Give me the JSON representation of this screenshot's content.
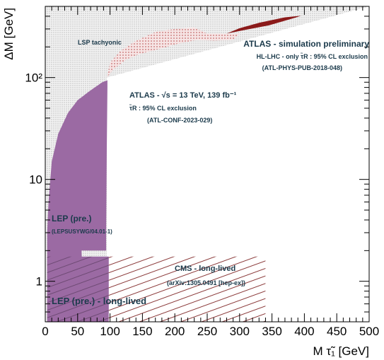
{
  "chart_data": {
    "type": "area",
    "xlabel": "M τ̃₁ [GeV]",
    "ylabel": "ΔM [GeV]",
    "xlim": [
      0,
      500
    ],
    "ylim": [
      0.4,
      500
    ],
    "yscale": "log",
    "grid": false,
    "legend": "none",
    "x_ticks": [
      "0",
      "50",
      "100",
      "150",
      "200",
      "250",
      "300",
      "350",
      "400",
      "450",
      "500"
    ],
    "y_ticks": [
      {
        "value": 1,
        "label": "1"
      },
      {
        "value": 10,
        "label": "10"
      },
      {
        "value": 100,
        "label": "10²"
      }
    ],
    "regions": [
      {
        "id": "lsp-tachyonic",
        "label": "LSP tachyonic",
        "color": "#cccccc",
        "points": [
          [
            0,
            500
          ],
          [
            0,
            0.4
          ],
          [
            95,
            0.4
          ],
          [
            95,
            100
          ],
          [
            500,
            500
          ]
        ]
      },
      {
        "id": "lep-pre",
        "color": "#9b6aa3",
        "points": [
          [
            3,
            0.4
          ],
          [
            3,
            3
          ],
          [
            5,
            6
          ],
          [
            10,
            15
          ],
          [
            20,
            28
          ],
          [
            35,
            45
          ],
          [
            50,
            60
          ],
          [
            70,
            75
          ],
          [
            88,
            90
          ],
          [
            96,
            94
          ],
          [
            96,
            80
          ],
          [
            95,
            20
          ],
          [
            94,
            3
          ],
          [
            94,
            2
          ],
          [
            56,
            2
          ],
          [
            60,
            0.4
          ]
        ]
      },
      {
        "id": "lep-pre-long-lived",
        "color": "#9b6aa3",
        "points": [
          [
            3,
            0.4
          ],
          [
            3,
            1.75
          ],
          [
            98,
            1.75
          ],
          [
            98,
            0.4
          ]
        ]
      },
      {
        "id": "cms-long-lived",
        "color": "#8b3a3a",
        "points": [
          [
            98,
            0.4
          ],
          [
            98,
            1.75
          ],
          [
            340,
            1.75
          ],
          [
            340,
            0.4
          ]
        ]
      },
      {
        "id": "atlas-run2",
        "color": "#d9a0a0",
        "points": [
          [
            95,
            100
          ],
          [
            105,
            120
          ],
          [
            125,
            150
          ],
          [
            145,
            170
          ],
          [
            175,
            190
          ],
          [
            205,
            215
          ],
          [
            235,
            235
          ],
          [
            260,
            230
          ],
          [
            290,
            235
          ],
          [
            300,
            270
          ],
          [
            250,
            270
          ],
          [
            230,
            310
          ],
          [
            200,
            300
          ],
          [
            170,
            280
          ],
          [
            140,
            230
          ],
          [
            115,
            180
          ],
          [
            100,
            140
          ]
        ]
      },
      {
        "id": "hl-lhc",
        "color": "#8b1a1a",
        "points": [
          [
            280,
            270
          ],
          [
            310,
            295
          ],
          [
            345,
            325
          ],
          [
            385,
            385
          ],
          [
            395,
            405
          ],
          [
            370,
            390
          ],
          [
            330,
            345
          ],
          [
            300,
            305
          ]
        ]
      }
    ],
    "annotations": {
      "lsp": "LSP tachyonic",
      "atlas_sim_title": "ATLAS - simulation preliminary",
      "atlas_sim_line2": "HL-LHC - only τ̃R : 95% CL exclusion",
      "atlas_sim_line3": "(ATL-PHYS-PUB-2018-048)",
      "atlas_title": "ATLAS - √s = 13 TeV, 139 fb⁻¹",
      "atlas_line2": "τ̃R : 95% CL exclusion",
      "atlas_line3": "(ATL-CONF-2023-029)",
      "lep_title": "LEP (pre.)",
      "lep_ref": "(LEPSUSYWG/04.01-1)",
      "cms_title": "CMS - long-lived",
      "cms_ref": "(arXiv:1305.0491 [hep-ex])",
      "lep_ll": "LEP (pre.) - long-lived"
    }
  }
}
